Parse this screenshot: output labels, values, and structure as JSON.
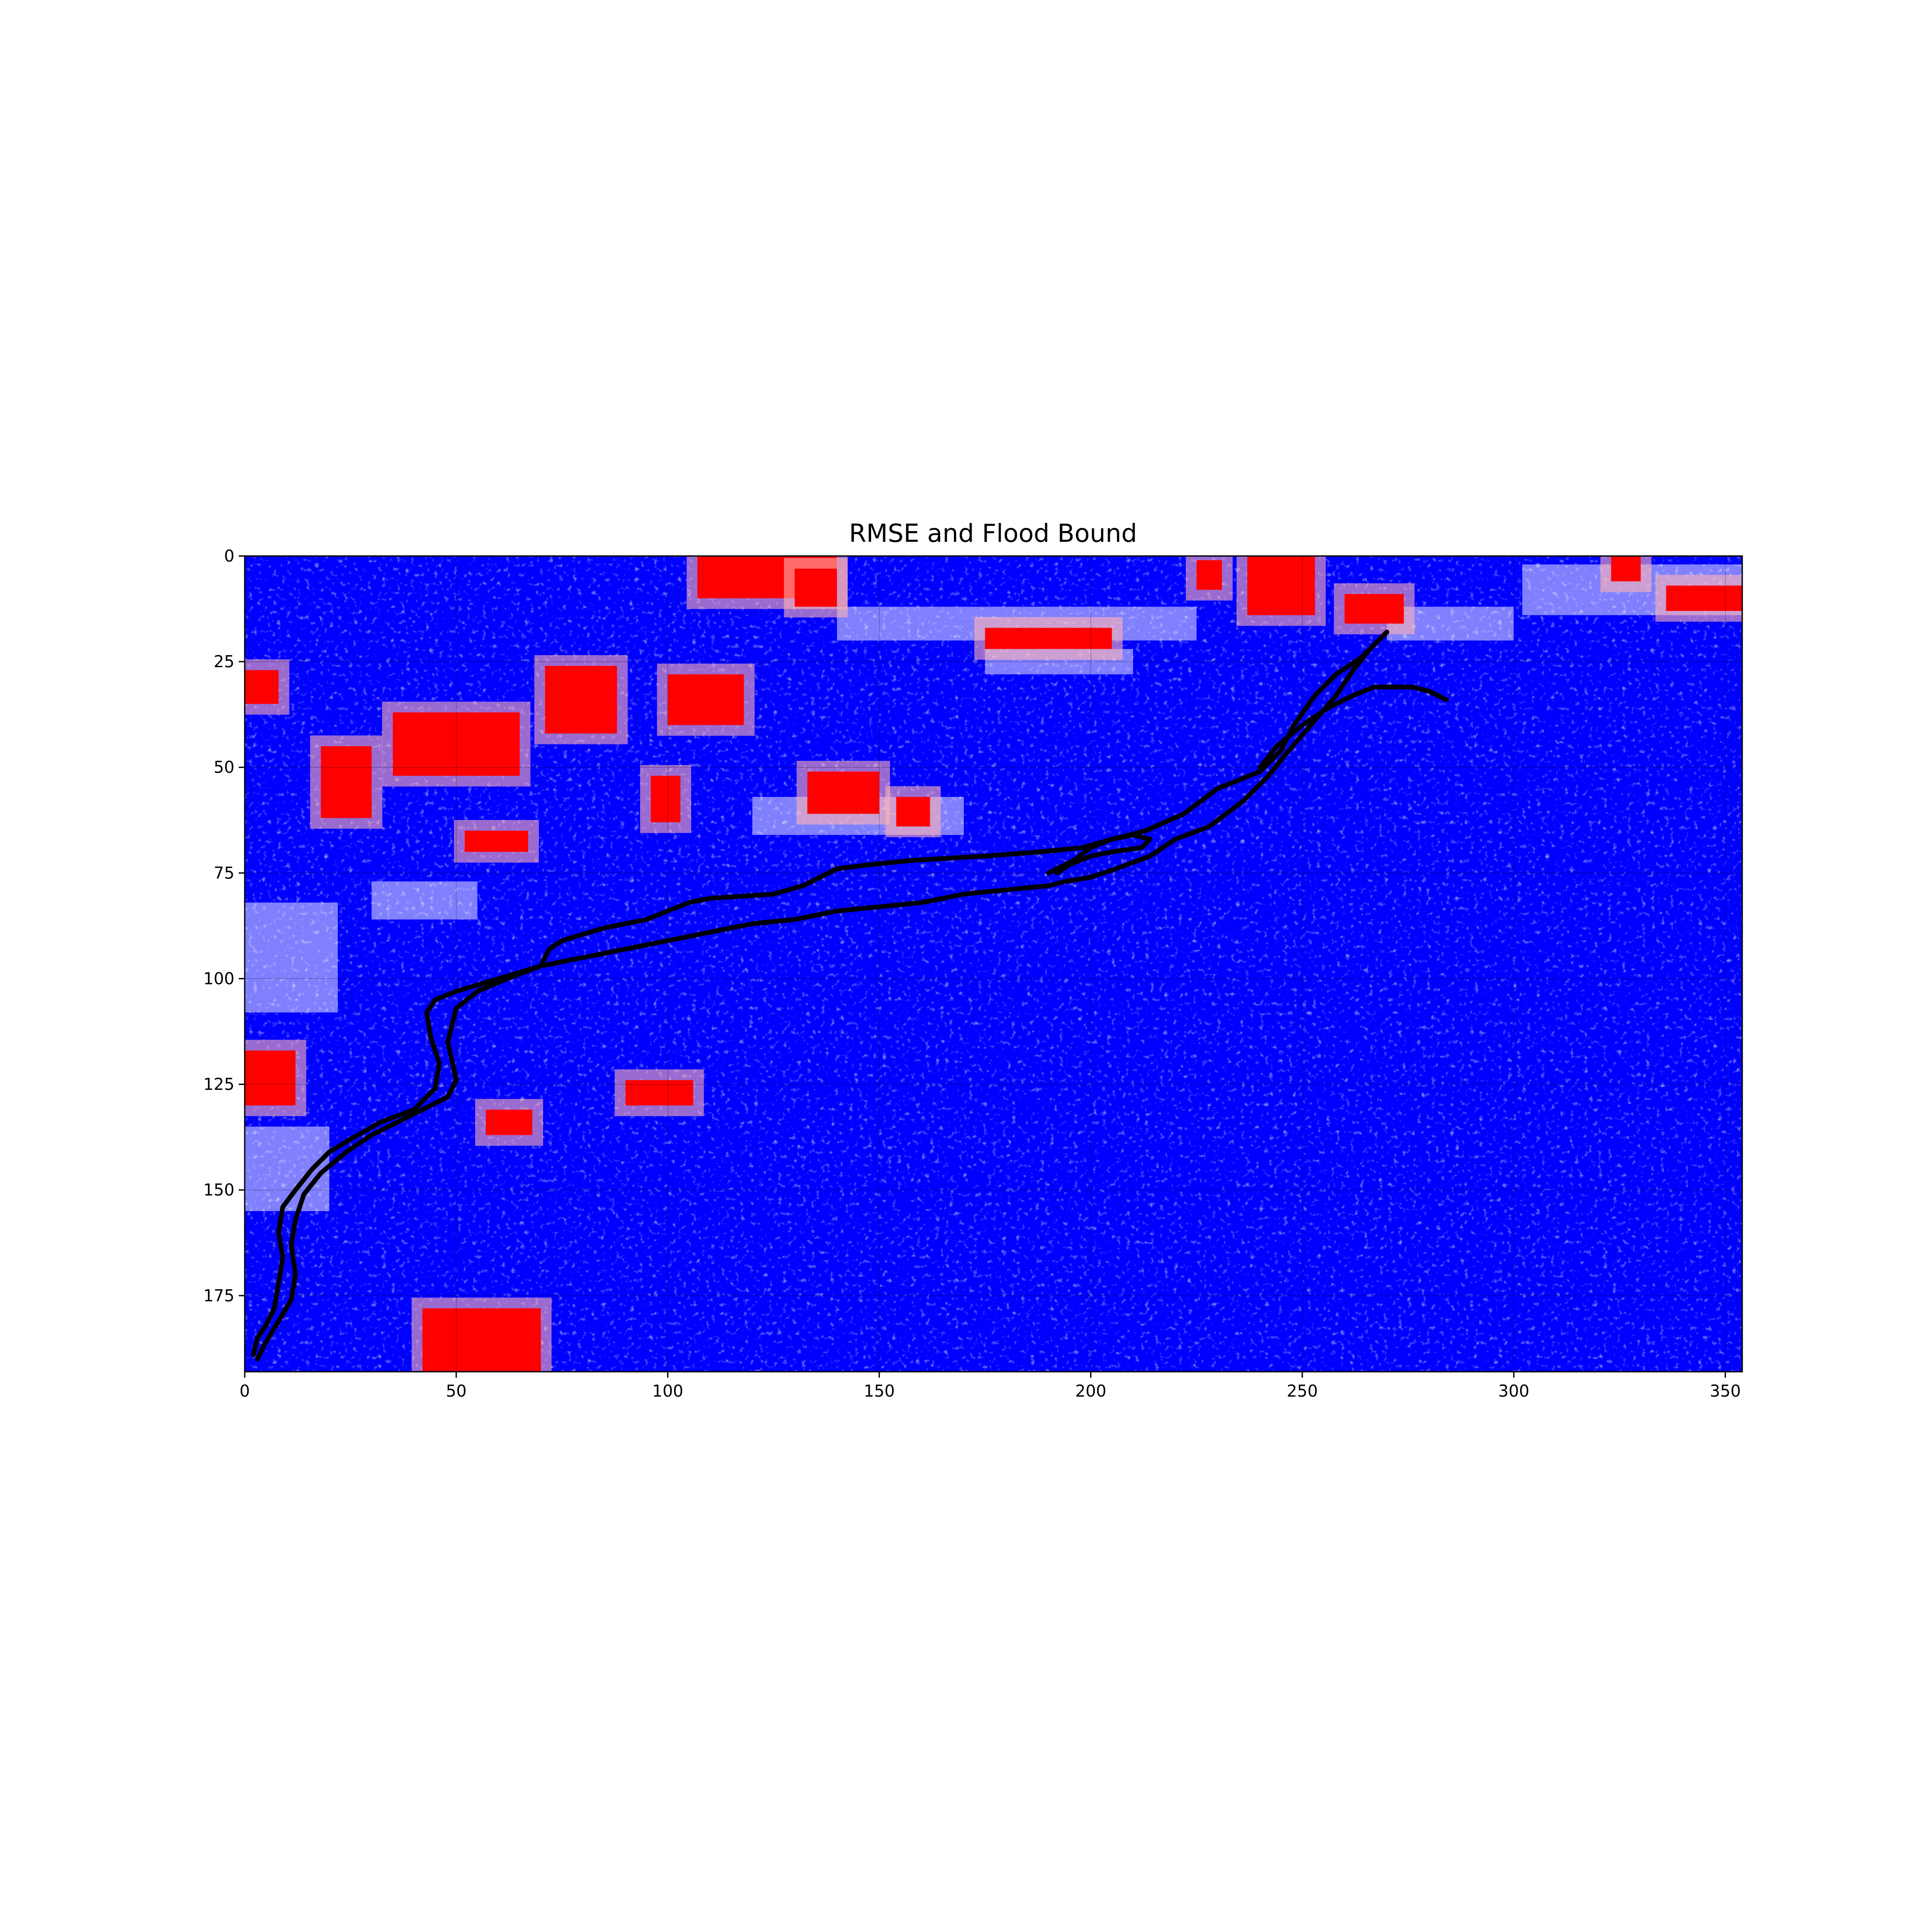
{
  "chart_data": {
    "type": "heatmap",
    "title": "RMSE and Flood Bound",
    "xlabel": "",
    "ylabel": "",
    "xlim": [
      0,
      354
    ],
    "ylim": [
      193,
      0
    ],
    "x_ticks": [
      0,
      50,
      100,
      150,
      200,
      250,
      300,
      350
    ],
    "y_ticks": [
      0,
      25,
      50,
      75,
      100,
      125,
      150,
      175
    ],
    "grid": true,
    "colormap": {
      "low": "#0000ff",
      "mid": "#ffffff",
      "high": "#ff0000"
    },
    "contour_color": "#000000",
    "red_regions": [
      {
        "x": [
          35,
          65
        ],
        "y": [
          37,
          52
        ]
      },
      {
        "x": [
          18,
          30
        ],
        "y": [
          45,
          62
        ]
      },
      {
        "x": [
          71,
          88
        ],
        "y": [
          26,
          42
        ]
      },
      {
        "x": [
          100,
          118
        ],
        "y": [
          28,
          40
        ]
      },
      {
        "x": [
          237,
          253
        ],
        "y": [
          0,
          14
        ]
      },
      {
        "x": [
          336,
          354
        ],
        "y": [
          7,
          13
        ]
      },
      {
        "x": [
          0,
          12
        ],
        "y": [
          117,
          130
        ]
      },
      {
        "x": [
          42,
          70
        ],
        "y": [
          178,
          193
        ]
      },
      {
        "x": [
          52,
          67
        ],
        "y": [
          65,
          70
        ]
      },
      {
        "x": [
          96,
          103
        ],
        "y": [
          52,
          63
        ]
      },
      {
        "x": [
          107,
          140
        ],
        "y": [
          0,
          10
        ]
      },
      {
        "x": [
          260,
          274
        ],
        "y": [
          9,
          16
        ]
      },
      {
        "x": [
          0,
          8
        ],
        "y": [
          27,
          35
        ]
      },
      {
        "x": [
          175,
          205
        ],
        "y": [
          17,
          22
        ]
      },
      {
        "x": [
          57,
          68
        ],
        "y": [
          131,
          137
        ]
      },
      {
        "x": [
          90,
          106
        ],
        "y": [
          124,
          130
        ]
      },
      {
        "x": [
          154,
          162
        ],
        "y": [
          57,
          64
        ]
      },
      {
        "x": [
          133,
          150
        ],
        "y": [
          51,
          61
        ]
      },
      {
        "x": [
          225,
          231
        ],
        "y": [
          1,
          8
        ]
      },
      {
        "x": [
          323,
          330
        ],
        "y": [
          0,
          6
        ]
      },
      {
        "x": [
          130,
          140
        ],
        "y": [
          3,
          12
        ]
      }
    ],
    "light_regions": [
      {
        "x": [
          0,
          22
        ],
        "y": [
          82,
          108
        ]
      },
      {
        "x": [
          140,
          225
        ],
        "y": [
          12,
          20
        ]
      },
      {
        "x": [
          120,
          170
        ],
        "y": [
          57,
          66
        ]
      },
      {
        "x": [
          30,
          55
        ],
        "y": [
          77,
          86
        ]
      },
      {
        "x": [
          302,
          354
        ],
        "y": [
          2,
          14
        ]
      },
      {
        "x": [
          175,
          210
        ],
        "y": [
          22,
          28
        ]
      },
      {
        "x": [
          270,
          300
        ],
        "y": [
          12,
          20
        ]
      },
      {
        "x": [
          0,
          20
        ],
        "y": [
          135,
          155
        ]
      }
    ],
    "flood_bound_contours": [
      {
        "x": [
          2,
          3,
          5,
          7,
          8,
          9,
          8,
          9,
          12,
          16,
          20,
          25,
          32,
          40,
          45,
          46,
          44,
          43,
          45,
          50,
          60,
          70,
          72,
          75,
          85,
          95,
          100,
          105,
          110,
          125,
          132,
          136,
          140,
          148,
          158,
          175,
          188,
          198,
          205,
          213,
          222,
          230,
          240,
          245,
          248,
          253,
          258,
          264,
          268,
          270
        ],
        "y": [
          189,
          185,
          182,
          178,
          172,
          166,
          160,
          154,
          150,
          145,
          141,
          138,
          134,
          131,
          126,
          120,
          114,
          108,
          105,
          103,
          100,
          97,
          93,
          91,
          88,
          86,
          84,
          82,
          81,
          80,
          78,
          76,
          74,
          73,
          72,
          71,
          70,
          69,
          67,
          65,
          61,
          55,
          51,
          46,
          40,
          33,
          28,
          24,
          20,
          18
        ]
      },
      {
        "x": [
          270,
          266,
          262,
          258,
          252,
          246,
          242,
          236,
          228,
          220,
          214,
          206,
          200,
          194,
          190,
          180,
          170,
          160,
          150,
          140,
          130,
          120,
          110,
          100,
          90,
          80,
          70,
          62,
          55,
          50,
          48,
          50,
          48,
          42,
          36,
          30,
          24,
          18,
          14,
          12,
          11,
          12,
          11,
          8,
          5,
          3
        ],
        "y": [
          18,
          22,
          27,
          33,
          40,
          47,
          52,
          58,
          64,
          67,
          71,
          74,
          76,
          77,
          78,
          79,
          80,
          82,
          83,
          84,
          86,
          87,
          89,
          91,
          93,
          95,
          97,
          100,
          103,
          107,
          115,
          124,
          128,
          131,
          134,
          137,
          141,
          146,
          151,
          157,
          163,
          170,
          176,
          181,
          186,
          190
        ]
      },
      {
        "x": [
          240,
          244,
          250,
          256,
          262,
          267,
          271,
          274,
          276,
          280,
          284
        ],
        "y": [
          50,
          45,
          40,
          36,
          33,
          31,
          31,
          31,
          31,
          32,
          34
        ]
      },
      {
        "x": [
          190,
          196,
          200,
          205,
          210,
          214,
          212,
          205,
          200,
          195,
          192
        ],
        "y": [
          75,
          72,
          69,
          67,
          66,
          67,
          69,
          70,
          71,
          73,
          75
        ]
      }
    ]
  }
}
